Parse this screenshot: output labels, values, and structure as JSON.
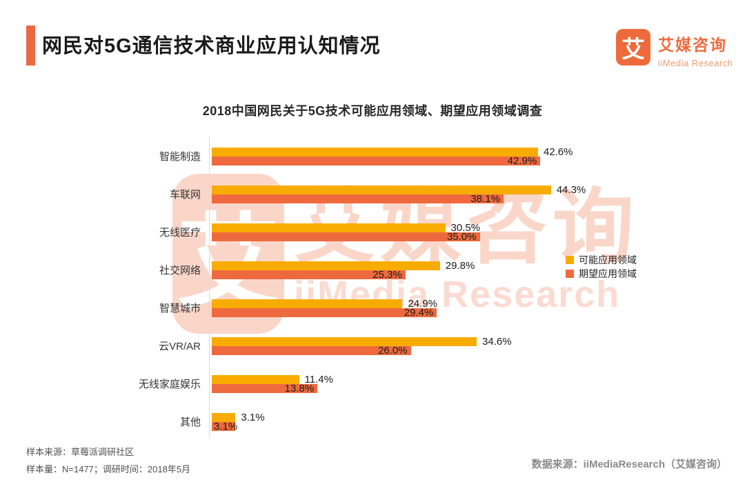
{
  "page": {
    "title": "网民对5G通信技术商业应用认知情况",
    "logo": {
      "symbol": "艾",
      "name_cn": "艾媒咨询",
      "name_en": "iiMedia Research"
    },
    "footer": {
      "sample_source": "样本来源：草莓派调研社区",
      "sample_info": "样本量：N=1477；调研时间：2018年5月",
      "data_source": "数据来源：iiMediaResearch（艾媒咨询）"
    }
  },
  "watermark": {
    "symbol": "艾",
    "text_cn": "艾媒咨询",
    "text_en": "iiMedia Research"
  },
  "colors": {
    "accent": "#EB6A44",
    "logo_orange": "#EE6A3A",
    "logo_text": "#ED6B3E",
    "logo_subtext": "#F09A72",
    "series_possible": "#F8AC00",
    "series_expected": "#EE6A3E",
    "watermark_tint": "rgba(238,106,62,0.28)"
  },
  "chart_data": {
    "type": "bar",
    "orientation": "horizontal",
    "title": "2018中国网民关于5G技术可能应用领域、期望应用领域调查",
    "categories": [
      "智能制造",
      "车联网",
      "无线医疗",
      "社交网络",
      "智慧城市",
      "云VR/AR",
      "无线家庭娱乐",
      "其他"
    ],
    "series": [
      {
        "name": "可能应用领域",
        "color": "#F8AC00",
        "values": [
          42.6,
          44.3,
          30.5,
          29.8,
          24.9,
          34.6,
          11.4,
          3.1
        ]
      },
      {
        "name": "期望应用领域",
        "color": "#EE6A3E",
        "values": [
          42.9,
          38.1,
          35.0,
          25.3,
          29.4,
          26.0,
          13.8,
          3.1
        ]
      }
    ],
    "value_suffix": "%",
    "xlim": [
      0,
      46
    ],
    "grid": false,
    "legend_position": "right-middle"
  }
}
